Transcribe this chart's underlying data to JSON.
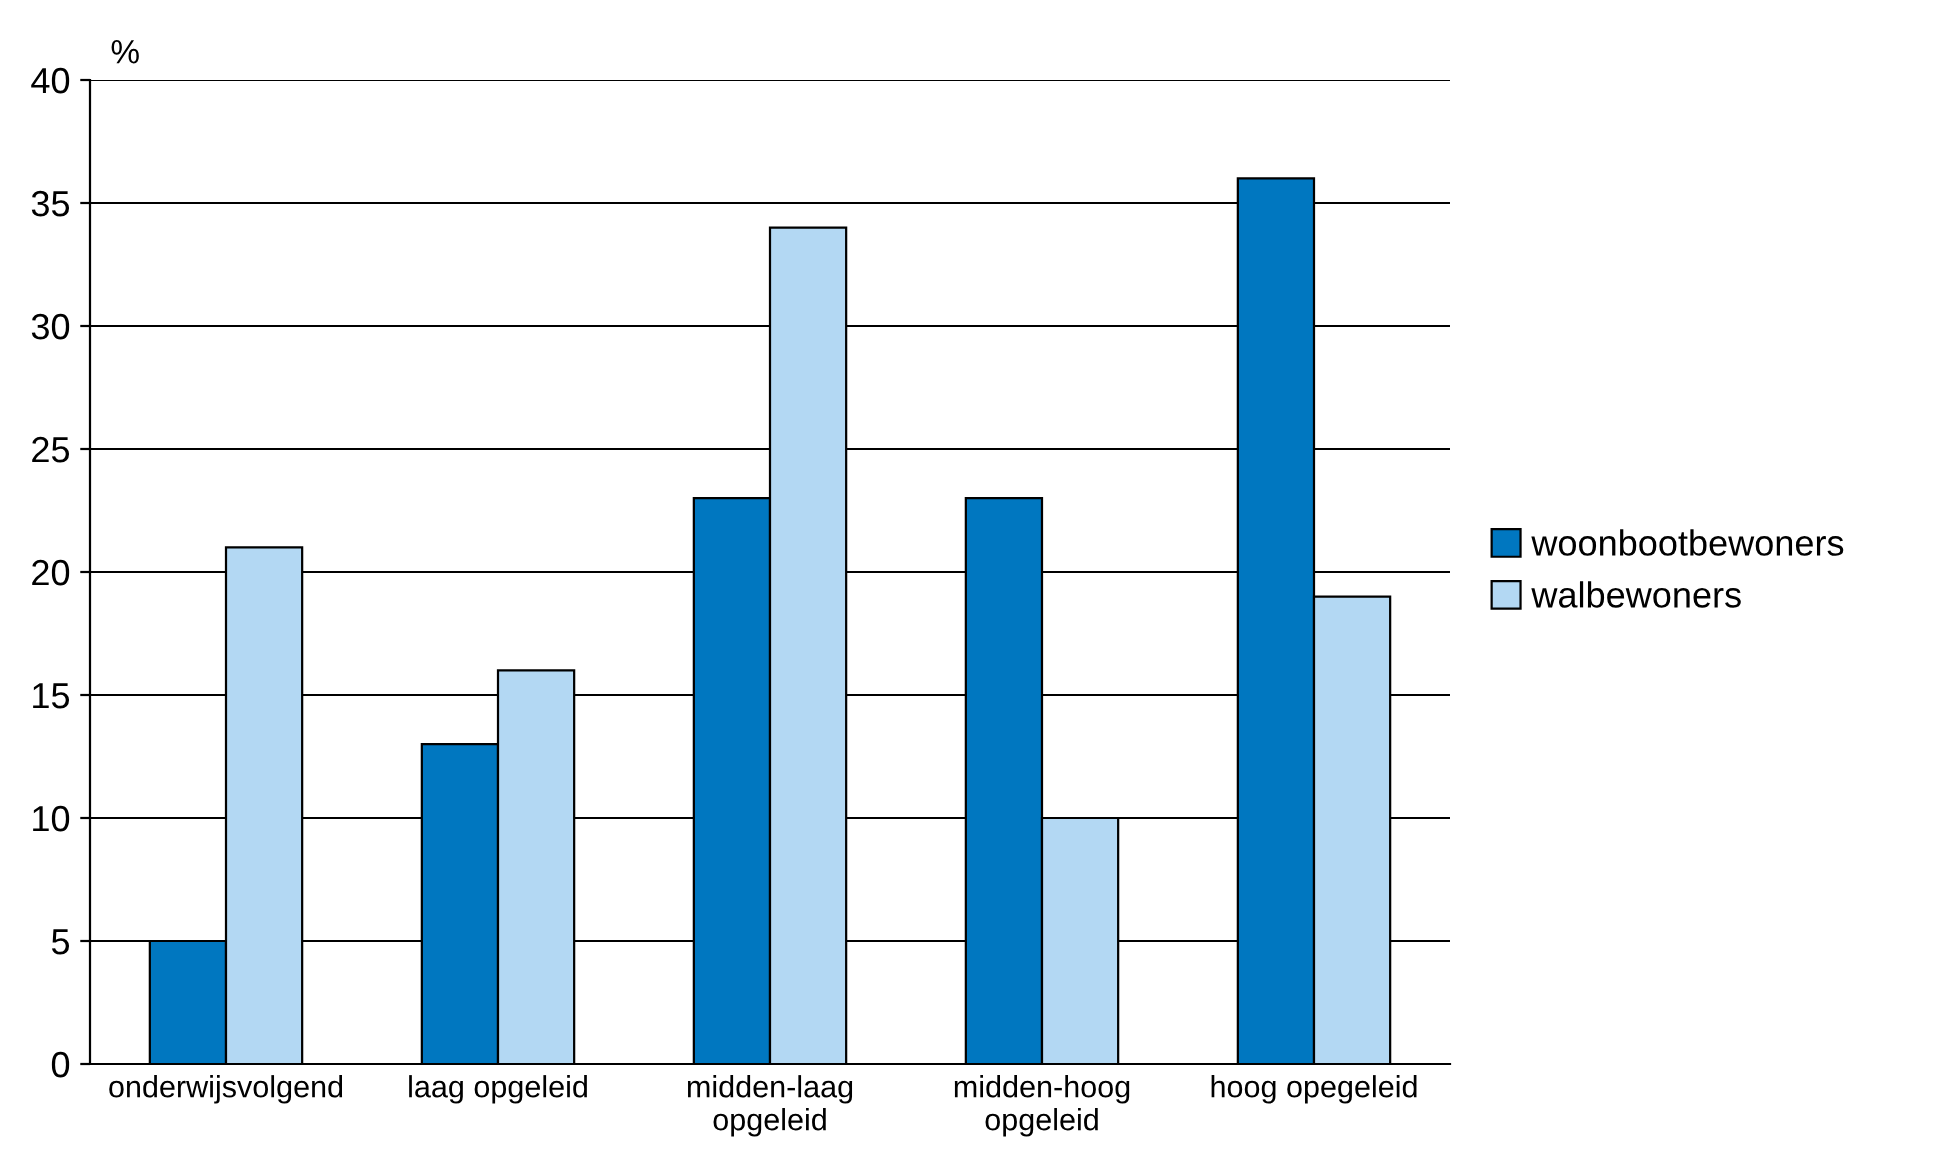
{
  "chart_data": {
    "type": "bar",
    "ylabel": "%",
    "categories": [
      "onderwijsvolgend",
      "laag opgeleid",
      "midden-laag opgeleid",
      "midden-hoog opgeleid",
      "hoog opegeleid"
    ],
    "series": [
      {
        "name": "woonbootbewoners",
        "color": "#0077c0",
        "values": [
          5,
          13,
          23,
          23,
          36
        ]
      },
      {
        "name": "walbewoners",
        "color": "#b3d8f3",
        "values": [
          21,
          16,
          34,
          10,
          19
        ]
      }
    ],
    "ylim": [
      0,
      40
    ],
    "yticks": [
      0,
      5,
      10,
      15,
      20,
      25,
      30,
      35,
      40
    ],
    "grid": "y",
    "legend": "right"
  }
}
